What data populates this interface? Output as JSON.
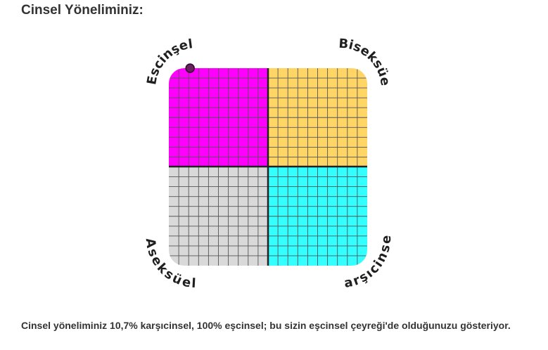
{
  "title": "Cinsel Yöneliminiz:",
  "chart_data": {
    "type": "scatter",
    "quadrants": [
      {
        "label": "Escinşel",
        "position": "top-left",
        "color": "#ff00ff"
      },
      {
        "label": "Biseksüel",
        "position": "top-right",
        "color": "#ffd666"
      },
      {
        "label": "Aseksüel",
        "position": "bottom-left",
        "color": "#d9d9d9"
      },
      {
        "label": "Karşıcinsel",
        "position": "bottom-right",
        "color": "#33ffff"
      }
    ],
    "point": {
      "karsicinsel_percent": 10.7,
      "escinsel_percent": 100,
      "color": "#6b2060"
    },
    "grid": true
  },
  "description": "Cinsel yöneliminiz 10,7% karşıcinsel, 100% eşcinsel; bu sizin eşcinsel çeyreği'de olduğunuzu gösteriyor."
}
